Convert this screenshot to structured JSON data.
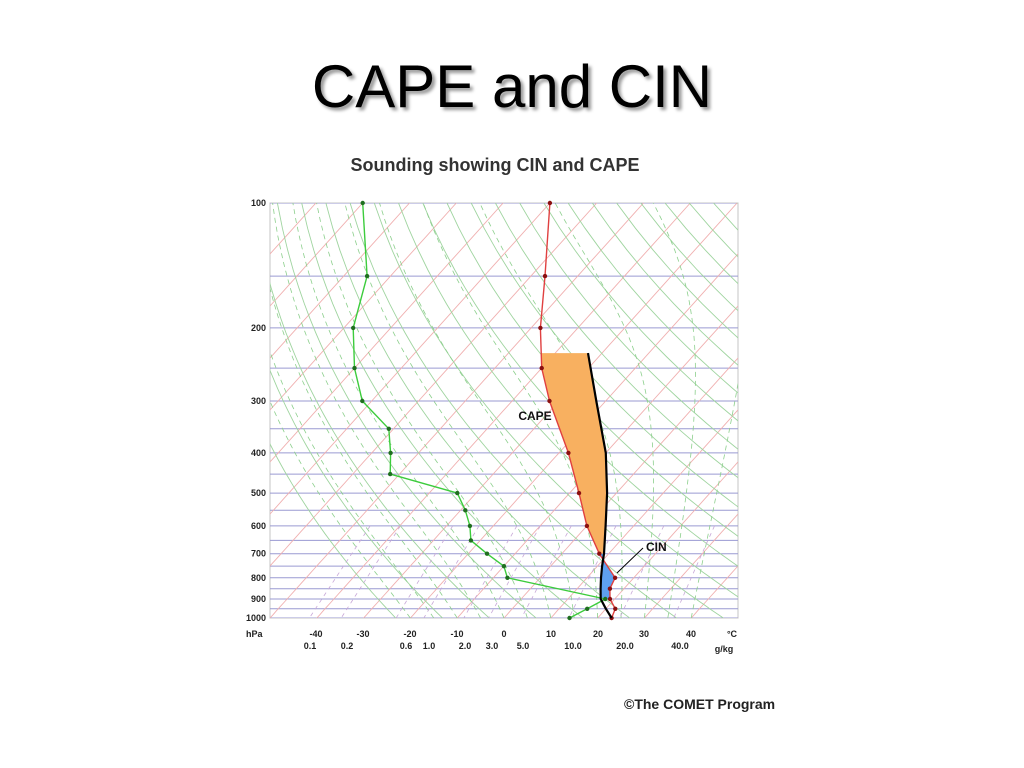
{
  "slide": {
    "title": "CAPE and CIN"
  },
  "credit": "©The COMET Program",
  "chart_data": {
    "type": "line",
    "title": "Sounding showing CIN and CAPE",
    "pressure_unit": "hPa",
    "temperature_unit": "°C",
    "mixing_ratio_unit": "g/kg",
    "pressure_levels": [
      100,
      200,
      300,
      400,
      500,
      600,
      700,
      800,
      900,
      1000
    ],
    "temperature_ticks": [
      -40,
      -30,
      -20,
      -10,
      0,
      10,
      20,
      30,
      40
    ],
    "mixing_ratio_ticks": [
      "0.1",
      "0.2",
      "0.6",
      "1.0",
      "2.0",
      "3.0",
      "5.0",
      "10.0",
      "20.0",
      "40.0"
    ],
    "temperature_profile": [
      {
        "p": 1000,
        "t": 23
      },
      {
        "p": 950,
        "t": 22
      },
      {
        "p": 900,
        "t": 19
      },
      {
        "p": 850,
        "t": 17
      },
      {
        "p": 800,
        "t": 16
      },
      {
        "p": 700,
        "t": 8
      },
      {
        "p": 600,
        "t": 0
      },
      {
        "p": 500,
        "t": -8
      },
      {
        "p": 400,
        "t": -18
      },
      {
        "p": 300,
        "t": -32
      },
      {
        "p": 250,
        "t": -40
      },
      {
        "p": 200,
        "t": -48
      },
      {
        "p": 150,
        "t": -57
      },
      {
        "p": 100,
        "t": -70
      }
    ],
    "dewpoint_profile": [
      {
        "p": 1000,
        "t": 14
      },
      {
        "p": 950,
        "t": 16
      },
      {
        "p": 900,
        "t": 18
      },
      {
        "p": 800,
        "t": -7
      },
      {
        "p": 750,
        "t": -10
      },
      {
        "p": 700,
        "t": -16
      },
      {
        "p": 650,
        "t": -22
      },
      {
        "p": 600,
        "t": -25
      },
      {
        "p": 550,
        "t": -29
      },
      {
        "p": 500,
        "t": -34
      },
      {
        "p": 450,
        "t": -52
      },
      {
        "p": 400,
        "t": -56
      },
      {
        "p": 350,
        "t": -61
      },
      {
        "p": 300,
        "t": -72
      },
      {
        "p": 250,
        "t": -80
      },
      {
        "p": 200,
        "t": -88
      },
      {
        "p": 150,
        "t": -95
      },
      {
        "p": 100,
        "t": -110
      }
    ],
    "parcel_profile": [
      {
        "p": 1000,
        "t": 23
      },
      {
        "p": 950,
        "t": 20
      },
      {
        "p": 900,
        "t": 17
      },
      {
        "p": 850,
        "t": 15
      },
      {
        "p": 800,
        "t": 13
      },
      {
        "p": 750,
        "t": 11
      },
      {
        "p": 700,
        "t": 9
      },
      {
        "p": 600,
        "t": 4
      },
      {
        "p": 500,
        "t": -2
      },
      {
        "p": 400,
        "t": -10
      },
      {
        "p": 300,
        "t": -22
      },
      {
        "p": 230,
        "t": -33
      }
    ],
    "cape_region": {
      "label": "CAPE",
      "p_bottom": 700,
      "p_top": 230
    },
    "cin_region": {
      "label": "CIN",
      "p_bottom": 900,
      "p_top": 700
    },
    "colors": {
      "temperature": "#e04040",
      "dewpoint": "#3ccc3c",
      "parcel": "#000000",
      "cape": "#f8b060",
      "cin": "#5ea0f0",
      "isobar": "#9a9ad2"
    }
  }
}
